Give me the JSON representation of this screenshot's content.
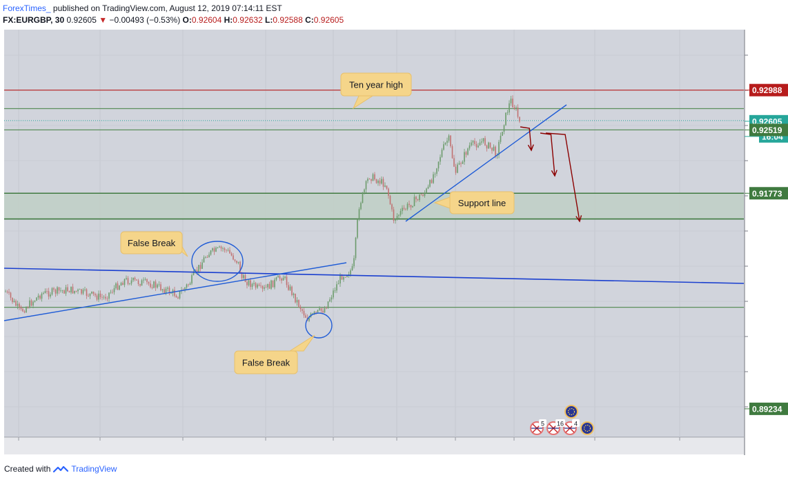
{
  "header": {
    "author": "ForexTimes_",
    "published": "published on TradingView.com, August 12, 2019 07:14:11 EST",
    "symbol": "FX:EURGBP, 30",
    "last": "0.92605",
    "change": "−0.00493 (−0.53%)",
    "open_label": "O:",
    "open": "0.92604",
    "high_label": "H:",
    "high": "0.92632",
    "low_label": "L:",
    "low": "0.92588",
    "close_label": "C:",
    "close": "0.92605"
  },
  "footer": {
    "created_with": "Created with",
    "brand": "TradingView"
  },
  "colors": {
    "plot_bg": "#d1d4dc",
    "resistance": "#b71c1c",
    "support_green": "#2e7d32",
    "trendline": "#1e5bd6",
    "arrow": "#8b0000",
    "callout_bg": "#f5d58a",
    "up_candle": "#6a9a6a",
    "down_candle": "#c07070",
    "price_teal": "#26a69a"
  },
  "chart_data": {
    "type": "candlestick",
    "instrument": "EURGBP",
    "timeframe": "30",
    "y_price_range": [
      0.889,
      0.937
    ],
    "price_scale_labels": [
      {
        "value": 0.92988,
        "text": "0.92988",
        "style": "resistance"
      },
      {
        "value": 0.92605,
        "text": "0.92605",
        "style": "last"
      },
      {
        "value": 0.92605,
        "text": "16:04",
        "style": "countdown"
      },
      {
        "value": 0.92519,
        "text": "0.92519",
        "style": "support"
      },
      {
        "value": 0.91773,
        "text": "0.91773",
        "style": "support"
      },
      {
        "value": 0.89234,
        "text": "0.89234",
        "style": "support"
      }
    ],
    "horizontal_levels": [
      {
        "price": 0.92988,
        "color": "resistance"
      },
      {
        "price": 0.9277,
        "color": "support"
      },
      {
        "price": 0.92519,
        "color": "support"
      },
      {
        "price": 0.91773,
        "color": "support_strong"
      },
      {
        "price": 0.9147,
        "color": "support_strong"
      },
      {
        "price": 0.9043,
        "color": "support"
      }
    ],
    "zone": {
      "from": 0.9147,
      "to": 0.91773
    },
    "callouts": [
      {
        "text": "Ten year high"
      },
      {
        "text": "Support line"
      },
      {
        "text": "False Break"
      },
      {
        "text": "False Break"
      }
    ],
    "event_badges": [
      "5",
      "16",
      "4"
    ]
  }
}
